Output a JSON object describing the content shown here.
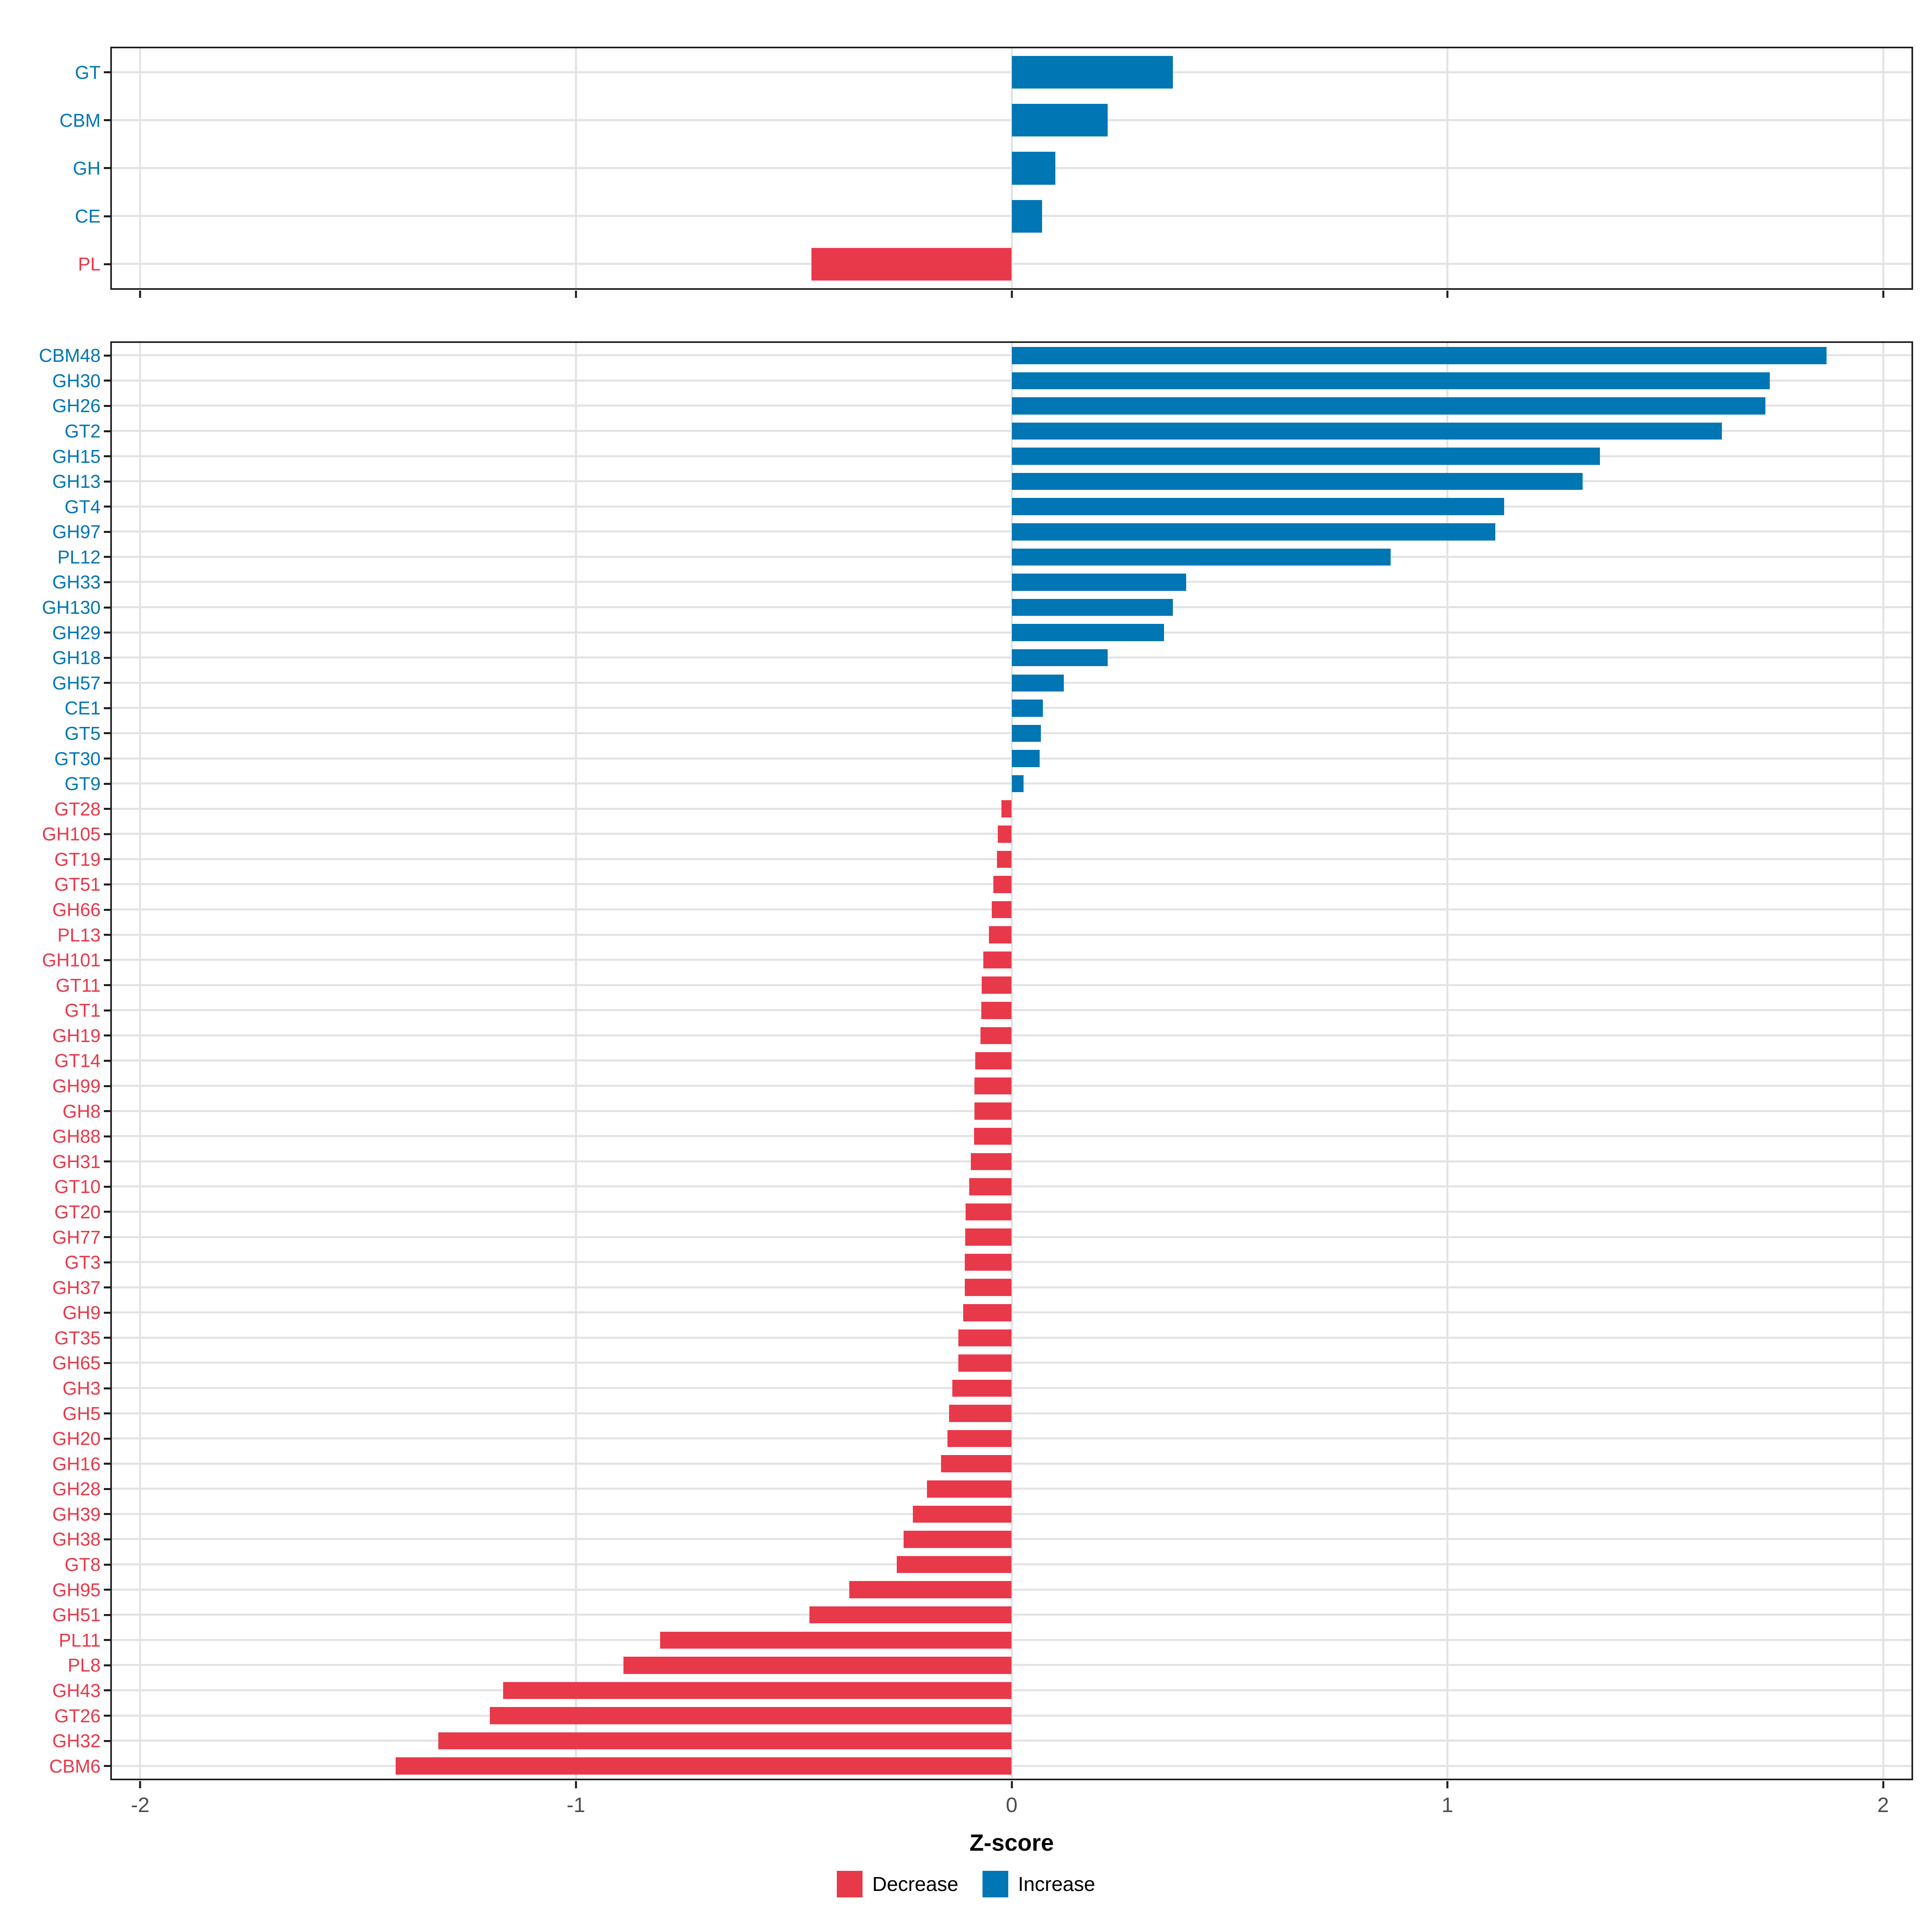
{
  "axis": {
    "xlabel": "Z-score",
    "xlim": [
      -2.065,
      2.065
    ],
    "ticks": [
      -2,
      -1,
      0,
      1,
      2
    ]
  },
  "colors": {
    "increase": "#0076b4",
    "decrease": "#e8394a",
    "grid": "#e3e3e3",
    "axis_line": "#1f1f1f",
    "tick_label": "#4d4d4d"
  },
  "legend": {
    "position": "bottom",
    "items": [
      {
        "label": "Decrease",
        "color": "#e8394a"
      },
      {
        "label": "Increase",
        "color": "#0076b4"
      }
    ]
  },
  "chart_data": [
    {
      "type": "bar",
      "orientation": "horizontal",
      "panel": "cazyme-classes",
      "xlabel": "Z-score",
      "xlim": [
        -2.065,
        2.065
      ],
      "xticks": [
        -2,
        -1,
        0,
        1,
        2
      ],
      "grid": true,
      "categories": [
        "GT",
        "CBM",
        "GH",
        "CE",
        "PL"
      ],
      "values": [
        0.37,
        0.22,
        0.1,
        0.07,
        -0.46
      ]
    },
    {
      "type": "bar",
      "orientation": "horizontal",
      "panel": "cazyme-families",
      "xlabel": "Z-score",
      "xlim": [
        -2.065,
        2.065
      ],
      "xticks": [
        -2,
        -1,
        0,
        1,
        2
      ],
      "grid": true,
      "categories": [
        "CBM48",
        "GH30",
        "GH26",
        "GT2",
        "GH15",
        "GH13",
        "GT4",
        "GH97",
        "PL12",
        "GH33",
        "GH130",
        "GH29",
        "GH18",
        "GH57",
        "CE1",
        "GT5",
        "GT30",
        "GT9",
        "GT28",
        "GH105",
        "GT19",
        "GT51",
        "GH66",
        "PL13",
        "GH101",
        "GT11",
        "GT1",
        "GH19",
        "GT14",
        "GH99",
        "GH8",
        "GH88",
        "GH31",
        "GT10",
        "GT20",
        "GH77",
        "GT3",
        "GH37",
        "GH9",
        "GT35",
        "GH65",
        "GH3",
        "GH5",
        "GH20",
        "GH16",
        "GH28",
        "GH39",
        "GH38",
        "GT8",
        "GH95",
        "GH51",
        "PL11",
        "PL8",
        "GH43",
        "GT26",
        "GH32",
        "CBM6"
      ],
      "values": [
        1.87,
        1.74,
        1.73,
        1.63,
        1.35,
        1.31,
        1.13,
        1.11,
        0.87,
        0.4,
        0.37,
        0.35,
        0.22,
        0.12,
        0.072,
        0.067,
        0.064,
        0.027,
        -0.024,
        -0.032,
        -0.034,
        -0.042,
        -0.046,
        -0.052,
        -0.065,
        -0.069,
        -0.07,
        -0.072,
        -0.084,
        -0.085,
        -0.085,
        -0.086,
        -0.094,
        -0.097,
        -0.106,
        -0.107,
        -0.108,
        -0.108,
        -0.111,
        -0.122,
        -0.122,
        -0.136,
        -0.144,
        -0.147,
        -0.162,
        -0.194,
        -0.227,
        -0.248,
        -0.264,
        -0.373,
        -0.464,
        -0.807,
        -0.891,
        -1.167,
        -1.198,
        -1.316,
        -1.414
      ]
    }
  ]
}
